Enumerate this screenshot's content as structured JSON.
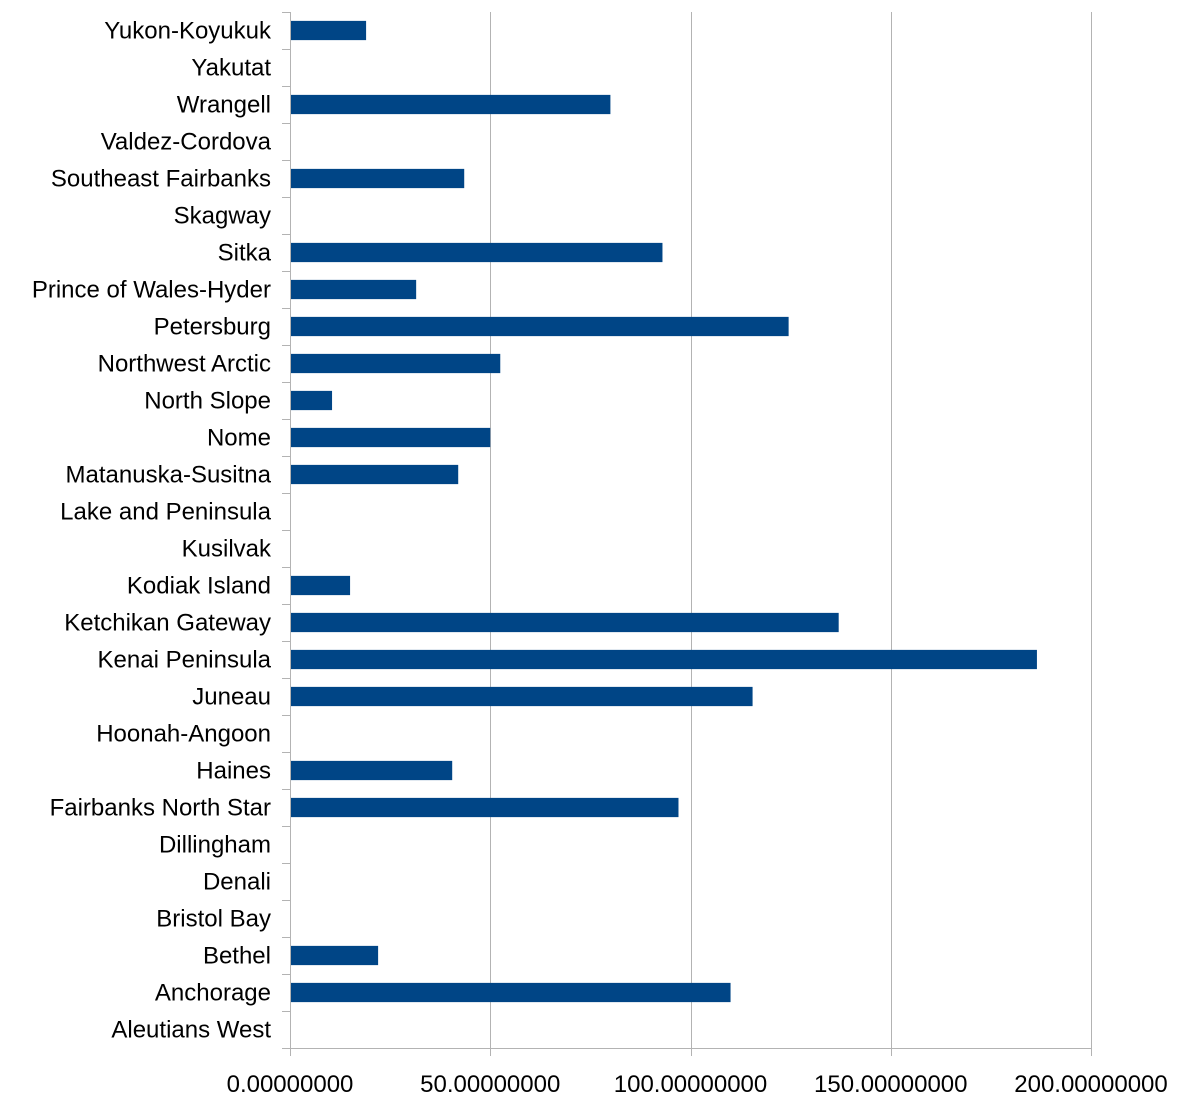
{
  "chart_data": {
    "type": "bar",
    "orientation": "horizontal",
    "title": "",
    "xlabel": "",
    "ylabel": "",
    "xlim": [
      0,
      200
    ],
    "x_ticks": [
      0,
      50,
      100,
      150,
      200
    ],
    "x_tick_labels": [
      "0.00000000",
      "50.00000000",
      "100.00000000",
      "150.00000000",
      "200.00000000"
    ],
    "grid": "vertical",
    "legend": "none",
    "bar_color": "#004586",
    "categories": [
      "Yukon-Koyukuk",
      "Yakutat",
      "Wrangell",
      "Valdez-Cordova",
      "Southeast Fairbanks",
      "Skagway",
      "Sitka",
      "Prince of Wales-Hyder",
      "Petersburg",
      "Northwest Arctic",
      "North Slope",
      "Nome",
      "Matanuska-Susitna",
      "Lake and Peninsula",
      "Kusilvak",
      "Kodiak Island",
      "Ketchikan Gateway",
      "Kenai Peninsula",
      "Juneau",
      "Hoonah-Angoon",
      "Haines",
      "Fairbanks North Star",
      "Dillingham",
      "Denali",
      "Bristol Bay",
      "Bethel",
      "Anchorage",
      "Aleutians West"
    ],
    "values": [
      19,
      0,
      80,
      0,
      43.5,
      0,
      93,
      31.5,
      124.5,
      52.5,
      10.5,
      50,
      42,
      0,
      0,
      15,
      137,
      186.5,
      115.5,
      0,
      40.5,
      97,
      0,
      0,
      0,
      22,
      110,
      0
    ]
  }
}
